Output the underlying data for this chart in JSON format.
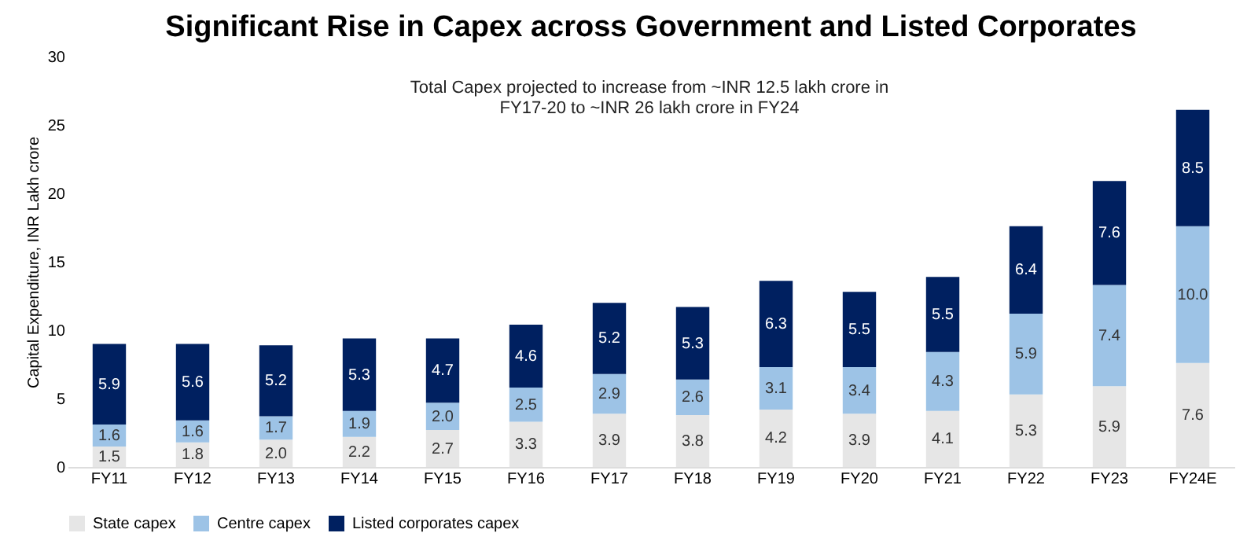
{
  "chart_data": {
    "type": "bar",
    "stacked": true,
    "title": "Significant Rise in Capex across Government and Listed Corporates",
    "ylabel": "Capital Expenditure, INR Lakh crore",
    "categories": [
      "FY11",
      "FY12",
      "FY13",
      "FY14",
      "FY15",
      "FY16",
      "FY17",
      "FY18",
      "FY19",
      "FY20",
      "FY21",
      "FY22",
      "FY23",
      "FY24E"
    ],
    "series": [
      {
        "name": "State capex",
        "color": "#e6e6e6",
        "values": [
          1.5,
          1.8,
          2.0,
          2.2,
          2.7,
          3.3,
          3.9,
          3.8,
          4.2,
          3.9,
          4.1,
          5.3,
          5.9,
          7.6
        ],
        "value_labels": [
          "1.5",
          "1.8",
          "2.0",
          "2.2",
          "2.7",
          "3.3",
          "3.9",
          "3.8",
          "4.2",
          "3.9",
          "4.1",
          "5.3",
          "5.9",
          "7.6"
        ]
      },
      {
        "name": "Centre capex",
        "color": "#9dc3e6",
        "values": [
          1.6,
          1.6,
          1.7,
          1.9,
          2.0,
          2.5,
          2.9,
          2.6,
          3.1,
          3.4,
          4.3,
          5.9,
          7.4,
          10.0
        ],
        "value_labels": [
          "1.6",
          "1.6",
          "1.7",
          "1.9",
          "2.0",
          "2.5",
          "2.9",
          "2.6",
          "3.1",
          "3.4",
          "4.3",
          "5.9",
          "7.4",
          "10.0"
        ]
      },
      {
        "name": "Listed corporates capex",
        "color": "#002060",
        "values": [
          5.9,
          5.6,
          5.2,
          5.3,
          4.7,
          4.6,
          5.2,
          5.3,
          6.3,
          5.5,
          5.5,
          6.4,
          7.6,
          8.5
        ],
        "value_labels": [
          "5.9",
          "5.6",
          "5.2",
          "5.3",
          "4.7",
          "4.6",
          "5.2",
          "5.3",
          "6.3",
          "5.5",
          "5.5",
          "6.4",
          "7.6",
          "8.5"
        ]
      }
    ],
    "ylim": [
      0,
      30
    ],
    "yticks": [
      0,
      5,
      10,
      15,
      20,
      25,
      30
    ],
    "legend": "bottom",
    "grid": false,
    "annotations": [
      "Total Capex projected to increase from ~INR 12.5 lakh crore in FY17-20 to ~INR 26 lakh crore in FY24"
    ]
  }
}
